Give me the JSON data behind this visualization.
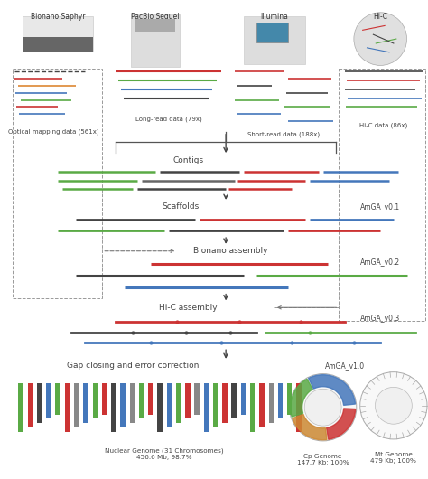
{
  "bg_color": "#ffffff",
  "colors": {
    "green": "#5aaa45",
    "red": "#cc3333",
    "blue": "#4477bb",
    "black": "#444444",
    "gray": "#888888",
    "darkgray": "#666666",
    "orange": "#dd8833"
  },
  "instrument_labels": [
    "Bionano Saphyr",
    "PacBio Sequel",
    "Illumina",
    "Hi-C"
  ],
  "data_labels": [
    "Optical mapping data (561x)",
    "Long-read data (79x)",
    "Short-read data (188x)",
    "Hi-C data (86x)"
  ],
  "version_labels": [
    "AmGA_v0.1",
    "AmGA_v0.2",
    "AmGA_v0.3",
    "AmGA_v1.0"
  ],
  "nuclear_label": "Nuclear Genome (31 Chromosomes)\n456.6 Mb; 98.7%",
  "cp_label": "Cp Genome\n147.7 Kb; 100%",
  "mt_label": "Mt Genome\n479 Kb; 100%",
  "step_labels": [
    "Contigs",
    "Scaffolds",
    "Bionano assembly",
    "Hi-C assembly",
    "Gap closing and error correction"
  ]
}
